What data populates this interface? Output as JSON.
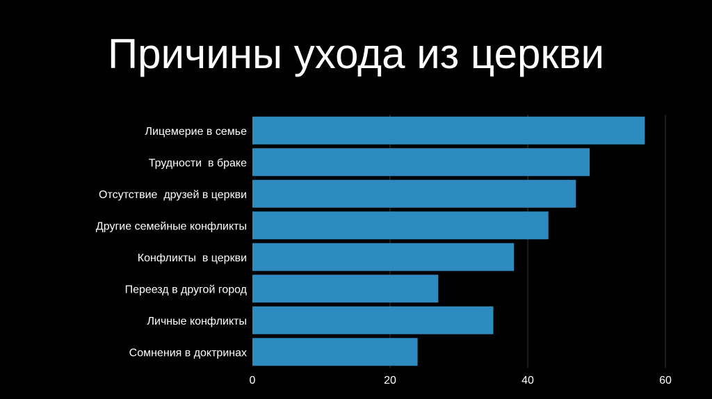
{
  "slide": {
    "title": "Причины ухода из церкви",
    "background_color": "#000000",
    "text_color": "#ffffff"
  },
  "chart_data": {
    "type": "bar",
    "orientation": "horizontal",
    "title": "",
    "xlabel": "",
    "ylabel": "",
    "categories": [
      "Лицемерие в семье",
      "Трудности  в браке",
      "Отсутствие  друзей в церкви",
      "Другие семейные конфликты",
      "Конфликты  в церкви",
      "Переезд в другой город",
      "Личные конфликты",
      "Сомнения в доктринах"
    ],
    "values": [
      57,
      49,
      47,
      43,
      38,
      27,
      35,
      24
    ],
    "xlim": [
      0,
      60
    ],
    "xticks": [
      "0",
      "20",
      "40",
      "60"
    ],
    "grid": true,
    "legend": "none",
    "bar_color": "#2e8bc0",
    "grid_color": "#3a3a3a"
  }
}
